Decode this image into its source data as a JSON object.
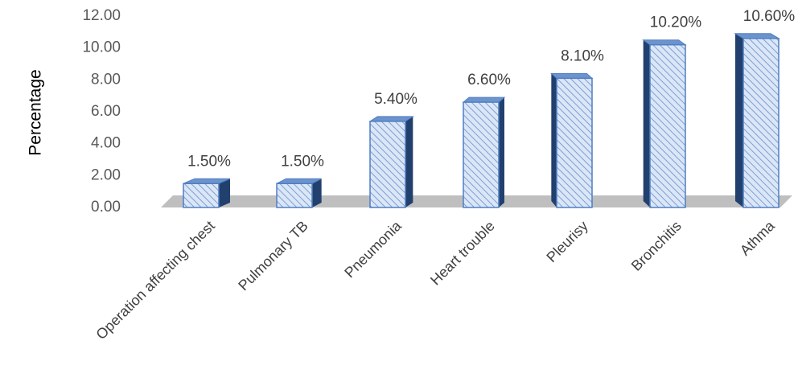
{
  "chart_data": {
    "type": "bar",
    "title": "",
    "xlabel": "",
    "ylabel": "Percentage",
    "ylim": [
      0,
      12
    ],
    "yticks": [
      "0.00",
      "2.00",
      "4.00",
      "6.00",
      "8.00",
      "10.00",
      "12.00"
    ],
    "categories": [
      "Operation affecting chest",
      "Pulmonary TB",
      "Pneumonia",
      "Heart trouble",
      "Pleurisy",
      "Bronchitis",
      "Athma"
    ],
    "values": [
      1.5,
      1.5,
      5.4,
      6.6,
      8.1,
      10.2,
      10.6
    ],
    "data_labels": [
      "1.50%",
      "1.50%",
      "5.40%",
      "6.60%",
      "8.10%",
      "10.20%",
      "10.60%"
    ],
    "grid": false,
    "legend": "none",
    "colors": {
      "bar_fill": "#dbe6f6",
      "bar_hatch": "#7d9fd3",
      "bar_stroke": "#4f7fc4",
      "bar_side": "#22406e",
      "bar_top": "#6c93cc",
      "floor": "#bfbfbf"
    }
  }
}
